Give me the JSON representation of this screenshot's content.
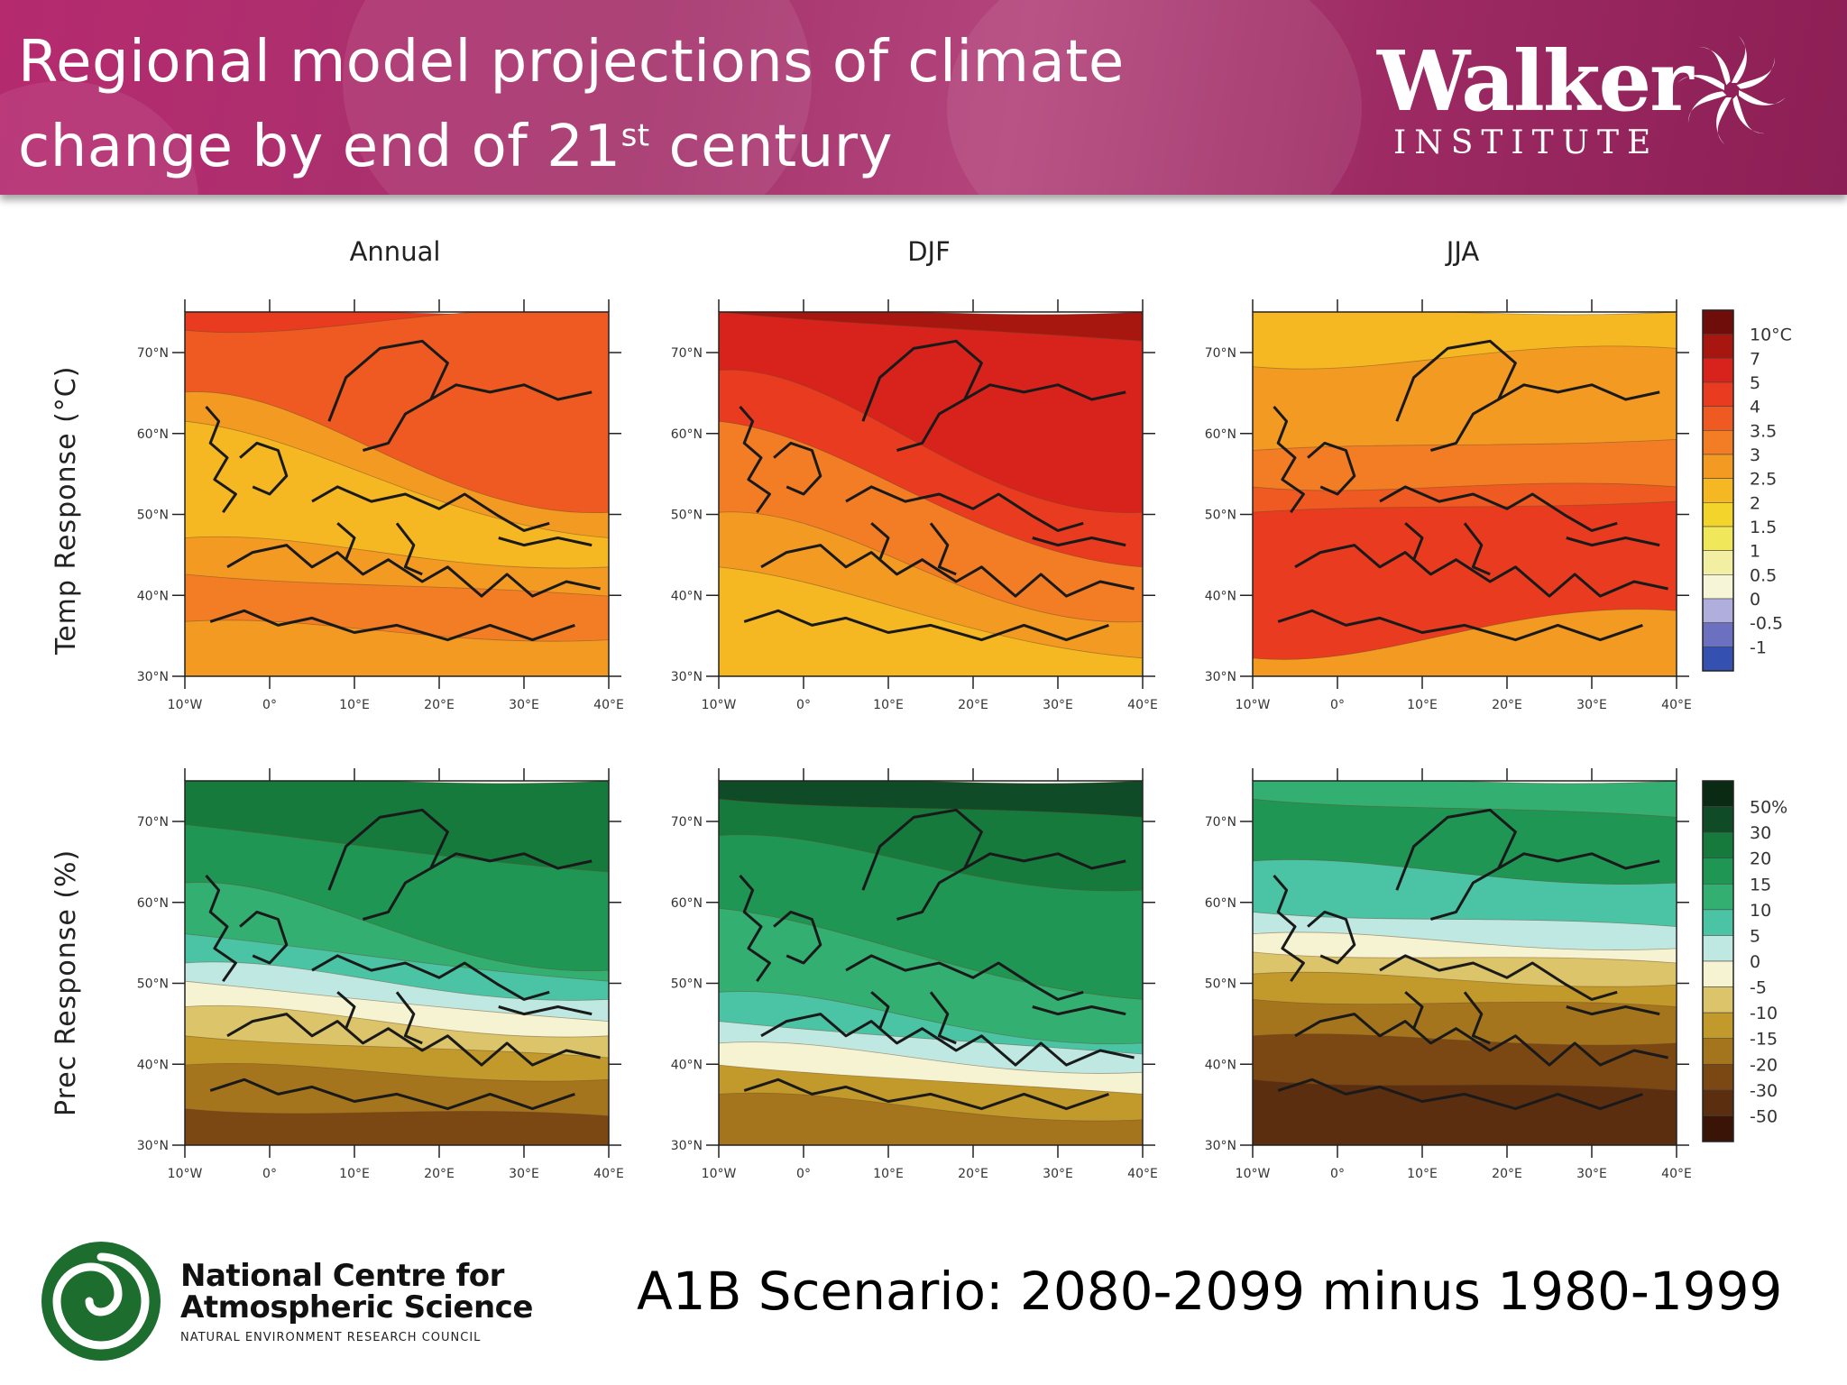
{
  "header": {
    "title_line1": "Regional model projections of climate",
    "title_line2_pre": "change by end of 21",
    "title_sup": "st",
    "title_line2_post": " century",
    "logo_name": "Walker",
    "logo_sub": "INSTITUTE",
    "logo_icon": "pinwheel-icon"
  },
  "columns": [
    "Annual",
    "DJF",
    "JJA"
  ],
  "rows": [
    "Temp Response (°C)",
    "Prec Response (%)"
  ],
  "axes": {
    "x_ticks": [
      "10°W",
      "0°",
      "10°E",
      "20°E",
      "30°E",
      "40°E"
    ],
    "y_ticks": [
      "70°N",
      "60°N",
      "50°N",
      "40°N",
      "30°N"
    ]
  },
  "colorbars": {
    "temp": {
      "labels": [
        "10°C",
        "7",
        "5",
        "4",
        "3.5",
        "3",
        "2.5",
        "2",
        "1.5",
        "1",
        "0.5",
        "0",
        "-0.5",
        "-1"
      ],
      "colors": [
        "#6e0d0a",
        "#a8170f",
        "#d8221c",
        "#e83b1f",
        "#ee5a21",
        "#f27d25",
        "#f39a22",
        "#f5b822",
        "#f3d42a",
        "#f0e75a",
        "#f3efa2",
        "#f7f5d8",
        "#b0aedd",
        "#6c70c0",
        "#3450b0"
      ]
    },
    "prec": {
      "labels": [
        "50%",
        "30",
        "20",
        "15",
        "10",
        "5",
        "0",
        "-5",
        "-10",
        "-15",
        "-20",
        "-30",
        "-50"
      ],
      "colors": [
        "#0b2a14",
        "#0f4b27",
        "#157a3b",
        "#1f9654",
        "#33b071",
        "#4bc4a6",
        "#bfe8e2",
        "#f6f3d2",
        "#dcc46a",
        "#c29a2c",
        "#a4751d",
        "#7b4713",
        "#5a2e0e",
        "#3a1406"
      ]
    }
  },
  "footer": {
    "ncas_line1": "National Centre for",
    "ncas_line2": "Atmospheric Science",
    "ncas_line3": "NATURAL ENVIRONMENT RESEARCH COUNCIL",
    "ncas_icon": "ncas-spiral-icon",
    "scenario": "A1B Scenario: 2080-2099 minus 1980-1999"
  }
}
